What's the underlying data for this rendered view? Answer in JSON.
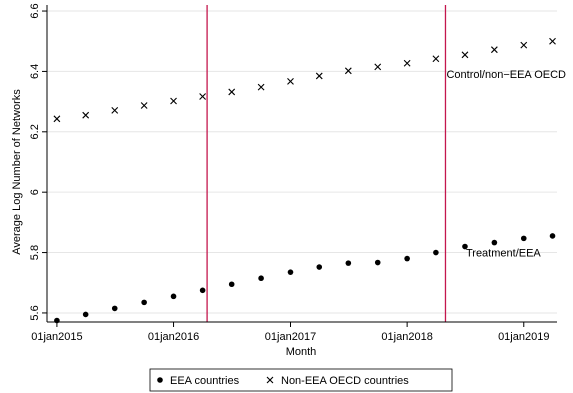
{
  "chart_data": {
    "type": "scatter",
    "xlabel": "Month",
    "ylabel": "Average Log Number of Networks",
    "xlim": [
      "2014-12-01",
      "2019-04-15"
    ],
    "ylim": [
      5.57,
      6.62
    ],
    "x_ticks": [
      "2015-01-01",
      "2016-01-01",
      "2017-01-01",
      "2018-01-01",
      "2019-01-01"
    ],
    "x_tick_labels": [
      "01jan2015",
      "01jan2016",
      "01jan2017",
      "01jan2018",
      "01jan2019"
    ],
    "y_ticks": [
      5.6,
      5.8,
      6,
      6.2,
      6.4,
      6.6
    ],
    "y_tick_labels": [
      "5.6",
      "5.8",
      "6",
      "6.2",
      "6.4",
      "6.6"
    ],
    "grid": "horizontal",
    "x": [
      "2015-01-01",
      "2015-04-01",
      "2015-07-01",
      "2015-10-01",
      "2016-01-01",
      "2016-04-01",
      "2016-07-01",
      "2016-10-01",
      "2017-01-01",
      "2017-04-01",
      "2017-07-01",
      "2017-10-01",
      "2018-01-01",
      "2018-04-01",
      "2018-07-01",
      "2018-10-01",
      "2019-01-01",
      "2019-04-01"
    ],
    "series": [
      {
        "name": "EEA countries",
        "marker": "dot",
        "values": [
          5.575,
          5.595,
          5.615,
          5.635,
          5.655,
          5.675,
          5.695,
          5.715,
          5.735,
          5.752,
          5.765,
          5.767,
          5.78,
          5.8,
          5.82,
          5.833,
          5.847,
          5.855
        ]
      },
      {
        "name": "Non-EEA OECD countries",
        "marker": "cross",
        "values": [
          6.243,
          6.255,
          6.271,
          6.287,
          6.302,
          6.317,
          6.332,
          6.348,
          6.367,
          6.385,
          6.402,
          6.415,
          6.427,
          6.442,
          6.455,
          6.472,
          6.487,
          6.5
        ]
      }
    ],
    "vlines": {
      "color": "#c4164d",
      "x": [
        "2016-04-15",
        "2018-05-01"
      ]
    },
    "annotations": [
      {
        "text": "Control/non−EEA OECD",
        "x": "2018-05-01",
        "y": 6.392
      },
      {
        "text": "Treatment/EEA",
        "x": "2018-07-01",
        "y": 5.8
      }
    ],
    "legend_position": "bottom"
  }
}
